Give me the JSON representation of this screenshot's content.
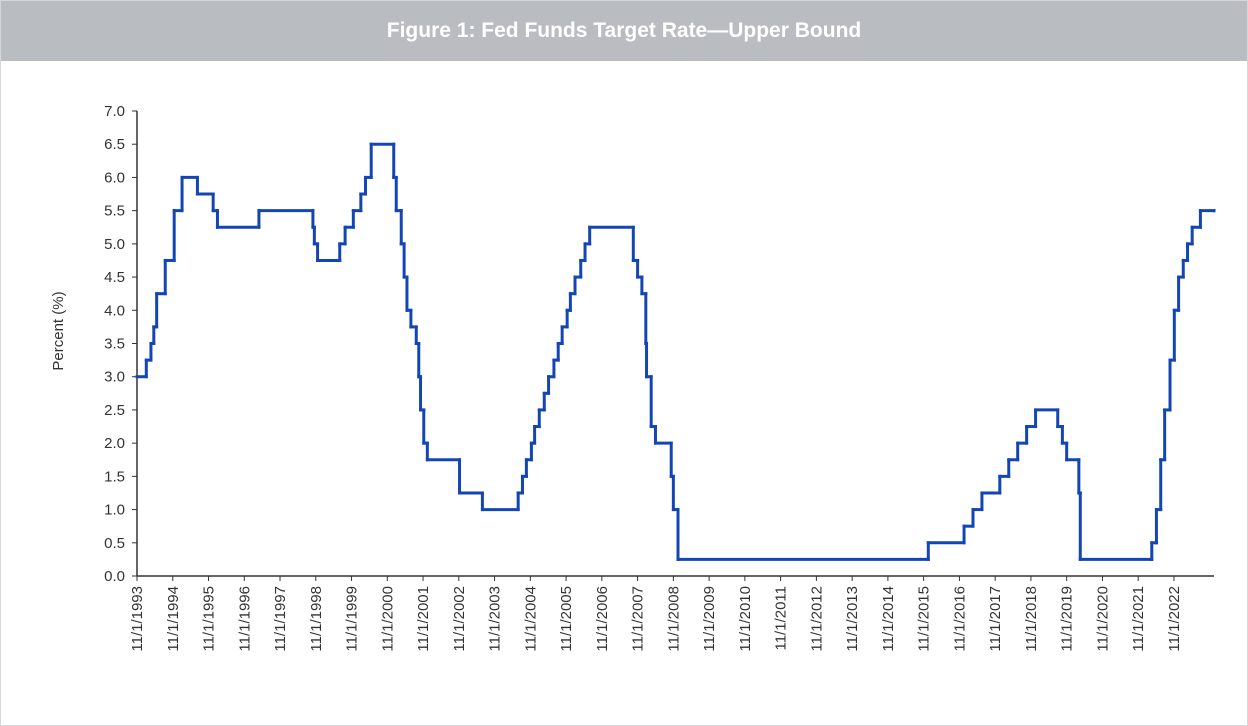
{
  "chart_data": {
    "type": "line",
    "step": "post",
    "title": "Figure 1: Fed Funds Target Rate—Upper Bound",
    "y_label": "Percent (%)",
    "xlim": [
      1993.83,
      2023.95
    ],
    "xticks": [
      {
        "value": 1993.83,
        "label": "11/1/1993"
      },
      {
        "value": 1994.83,
        "label": "11/1/1994"
      },
      {
        "value": 1995.83,
        "label": "11/1/1995"
      },
      {
        "value": 1996.83,
        "label": "11/1/1996"
      },
      {
        "value": 1997.83,
        "label": "11/1/1997"
      },
      {
        "value": 1998.83,
        "label": "11/1/1998"
      },
      {
        "value": 1999.83,
        "label": "11/1/1999"
      },
      {
        "value": 2000.83,
        "label": "11/1/2000"
      },
      {
        "value": 2001.83,
        "label": "11/1/2001"
      },
      {
        "value": 2002.83,
        "label": "11/1/2002"
      },
      {
        "value": 2003.83,
        "label": "11/1/2003"
      },
      {
        "value": 2004.83,
        "label": "11/1/2004"
      },
      {
        "value": 2005.83,
        "label": "11/1/2005"
      },
      {
        "value": 2006.83,
        "label": "11/1/2006"
      },
      {
        "value": 2007.83,
        "label": "11/1/2007"
      },
      {
        "value": 2008.83,
        "label": "11/1/2008"
      },
      {
        "value": 2009.83,
        "label": "11/1/2009"
      },
      {
        "value": 2010.83,
        "label": "11/1/2010"
      },
      {
        "value": 2011.83,
        "label": "11/1/2011"
      },
      {
        "value": 2012.83,
        "label": "11/1/2012"
      },
      {
        "value": 2013.83,
        "label": "11/1/2013"
      },
      {
        "value": 2014.83,
        "label": "11/1/2014"
      },
      {
        "value": 2015.83,
        "label": "11/1/2015"
      },
      {
        "value": 2016.83,
        "label": "11/1/2016"
      },
      {
        "value": 2017.83,
        "label": "11/1/2017"
      },
      {
        "value": 2018.83,
        "label": "11/1/2018"
      },
      {
        "value": 2019.83,
        "label": "11/1/2019"
      },
      {
        "value": 2020.83,
        "label": "11/1/2020"
      },
      {
        "value": 2021.83,
        "label": "11/1/2021"
      },
      {
        "value": 2022.83,
        "label": "11/1/2022"
      }
    ],
    "ylim": [
      0,
      7
    ],
    "yticks": [
      {
        "value": 0,
        "label": "0.0"
      },
      0.5,
      {
        "value": 1,
        "label": "1.0"
      },
      1.5,
      {
        "value": 2,
        "label": "2.0"
      },
      2.5,
      {
        "value": 3,
        "label": "3.0"
      },
      3.5,
      {
        "value": 4,
        "label": "4.0"
      },
      4.5,
      {
        "value": 5,
        "label": "5.0"
      },
      5.5,
      {
        "value": 6,
        "label": "6.0"
      },
      6.5,
      {
        "value": 7,
        "label": "7.0"
      }
    ],
    "x": [
      1993.83,
      1994.09,
      1994.22,
      1994.3,
      1994.38,
      1994.62,
      1994.87,
      1995.09,
      1995.52,
      1995.96,
      1996.08,
      1997.24,
      1998.75,
      1998.79,
      1998.88,
      1999.5,
      1999.65,
      1999.88,
      2000.09,
      2000.22,
      2000.38,
      2001.01,
      2001.08,
      2001.22,
      2001.3,
      2001.38,
      2001.49,
      2001.64,
      2001.71,
      2001.76,
      2001.85,
      2001.95,
      2002.85,
      2003.49,
      2004.49,
      2004.61,
      2004.72,
      2004.86,
      2004.95,
      2005.08,
      2005.22,
      2005.34,
      2005.49,
      2005.61,
      2005.72,
      2005.86,
      2005.95,
      2006.08,
      2006.24,
      2006.36,
      2006.49,
      2007.71,
      2007.83,
      2007.95,
      2008.06,
      2008.08,
      2008.21,
      2008.33,
      2008.77,
      2008.83,
      2008.96,
      2015.96,
      2016.96,
      2017.21,
      2017.46,
      2017.96,
      2018.21,
      2018.46,
      2018.71,
      2018.96,
      2019.58,
      2019.71,
      2019.83,
      2020.17,
      2020.21,
      2022.21,
      2022.34,
      2022.46,
      2022.57,
      2022.72,
      2022.84,
      2022.96,
      2023.09,
      2023.21,
      2023.34,
      2023.57,
      2023.95
    ],
    "series": [
      {
        "color": "#1346b4",
        "values": [
          3.0,
          3.25,
          3.5,
          3.75,
          4.25,
          4.75,
          5.5,
          6.0,
          5.75,
          5.5,
          5.25,
          5.5,
          5.25,
          5.0,
          4.75,
          5.0,
          5.25,
          5.5,
          5.75,
          6.0,
          6.5,
          6.0,
          5.5,
          5.0,
          4.5,
          4.0,
          3.75,
          3.5,
          3.0,
          2.5,
          2.0,
          1.75,
          1.25,
          1.0,
          1.25,
          1.5,
          1.75,
          2.0,
          2.25,
          2.5,
          2.75,
          3.0,
          3.25,
          3.5,
          3.75,
          4.0,
          4.25,
          4.5,
          4.75,
          5.0,
          5.25,
          4.75,
          4.5,
          4.25,
          3.5,
          3.0,
          2.25,
          2.0,
          1.5,
          1.0,
          0.25,
          0.5,
          0.75,
          1.0,
          1.25,
          1.5,
          1.75,
          2.0,
          2.25,
          2.5,
          2.25,
          2.0,
          1.75,
          1.25,
          0.25,
          0.5,
          1.0,
          1.75,
          2.5,
          3.25,
          4.0,
          4.5,
          4.75,
          5.0,
          5.25,
          5.5,
          5.5
        ]
      }
    ]
  }
}
